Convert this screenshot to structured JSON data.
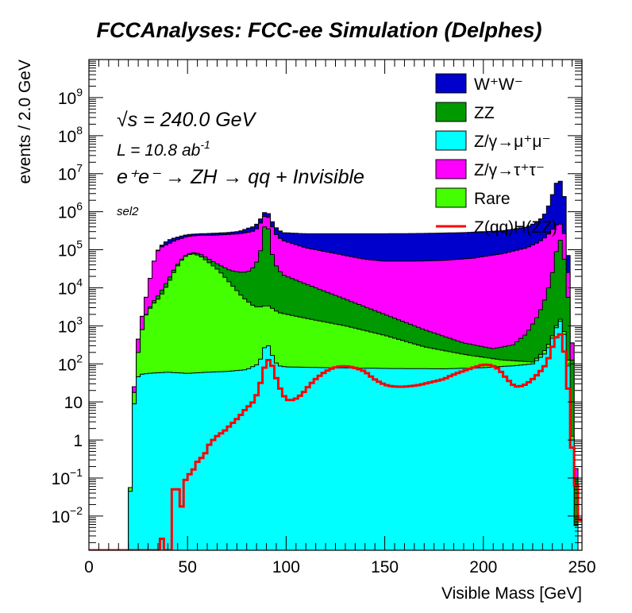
{
  "chart_data": {
    "type": "area",
    "stacked": true,
    "title": "FCCAnalyses: FCC-ee Simulation (Delphes)",
    "xlabel": "Visible Mass [GeV]",
    "ylabel": "events / 2.0 GeV",
    "xlim": [
      0,
      250
    ],
    "ylim_log10": [
      -2.9,
      10
    ],
    "log_y": true,
    "bin_width": 2,
    "x_ticks": [
      {
        "v": 0,
        "t": "0"
      },
      {
        "v": 50,
        "t": "50"
      },
      {
        "v": 100,
        "t": "100"
      },
      {
        "v": 150,
        "t": "150"
      },
      {
        "v": 200,
        "t": "200"
      },
      {
        "v": 250,
        "t": "250"
      }
    ],
    "y_ticks": [
      {
        "e": -2,
        "base": "10",
        "exp": "−2"
      },
      {
        "e": -1,
        "base": "10",
        "exp": "−1"
      },
      {
        "e": 0,
        "base": "1",
        "exp": ""
      },
      {
        "e": 1,
        "base": "10",
        "exp": ""
      },
      {
        "e": 2,
        "base": "10",
        "exp": "2"
      },
      {
        "e": 3,
        "base": "10",
        "exp": "3"
      },
      {
        "e": 4,
        "base": "10",
        "exp": "4"
      },
      {
        "e": 5,
        "base": "10",
        "exp": "5"
      },
      {
        "e": 6,
        "base": "10",
        "exp": "6"
      },
      {
        "e": 7,
        "base": "10",
        "exp": "7"
      },
      {
        "e": 8,
        "base": "10",
        "exp": "8"
      },
      {
        "e": 9,
        "base": "10",
        "exp": "9"
      }
    ],
    "annotations": {
      "sqrt_s": "√s = 240.0 GeV",
      "lumi_base": "L = 10.8 ab",
      "lumi_exp": "-1",
      "process": "e⁺e⁻ → ZH → qq + Invisible",
      "selection": "sel2"
    },
    "legend_position": "top-right",
    "series": [
      {
        "key": "mumu",
        "name": "Z/γ→μ⁺μ⁻",
        "color": "#00ffff",
        "points": [
          [
            20,
            -3
          ],
          [
            22,
            0.3
          ],
          [
            24,
            1.6
          ],
          [
            26,
            1.72
          ],
          [
            30,
            1.75
          ],
          [
            40,
            1.78
          ],
          [
            50,
            1.75
          ],
          [
            60,
            1.78
          ],
          [
            70,
            1.8
          ],
          [
            80,
            1.85
          ],
          [
            86,
            2.0
          ],
          [
            88,
            2.25
          ],
          [
            90,
            2.6
          ],
          [
            92,
            2.35
          ],
          [
            94,
            2.1
          ],
          [
            96,
            1.95
          ],
          [
            100,
            1.92
          ],
          [
            120,
            1.9
          ],
          [
            150,
            1.88
          ],
          [
            180,
            1.87
          ],
          [
            200,
            1.9
          ],
          [
            215,
            1.95
          ],
          [
            225,
            2.0
          ],
          [
            232,
            2.3
          ],
          [
            236,
            2.8
          ],
          [
            238,
            3.1
          ],
          [
            240,
            3.15
          ],
          [
            242,
            2.4
          ],
          [
            244,
            1.5
          ],
          [
            246,
            -1.5
          ],
          [
            248,
            -3
          ]
        ]
      },
      {
        "key": "rare",
        "name": "Rare",
        "color": "#44ff00",
        "points": [
          [
            20,
            -3
          ],
          [
            22,
            0.5
          ],
          [
            24,
            2.0
          ],
          [
            26,
            2.6
          ],
          [
            28,
            3.2
          ],
          [
            32,
            3.55
          ],
          [
            36,
            3.75
          ],
          [
            40,
            4.1
          ],
          [
            44,
            4.5
          ],
          [
            48,
            4.8
          ],
          [
            52,
            4.9
          ],
          [
            56,
            4.85
          ],
          [
            60,
            4.7
          ],
          [
            66,
            4.45
          ],
          [
            72,
            4.1
          ],
          [
            78,
            3.75
          ],
          [
            84,
            3.5
          ],
          [
            88,
            3.5
          ],
          [
            90,
            3.55
          ],
          [
            92,
            3.5
          ],
          [
            96,
            3.35
          ],
          [
            110,
            3.2
          ],
          [
            130,
            3.0
          ],
          [
            150,
            2.75
          ],
          [
            170,
            2.45
          ],
          [
            190,
            2.25
          ],
          [
            210,
            2.1
          ],
          [
            225,
            2.05
          ],
          [
            232,
            2.4
          ],
          [
            236,
            2.85
          ],
          [
            238,
            3.15
          ],
          [
            240,
            3.2
          ],
          [
            242,
            2.5
          ],
          [
            244,
            1.7
          ],
          [
            246,
            -1.5
          ],
          [
            248,
            -3
          ]
        ]
      },
      {
        "key": "zz",
        "name": "ZZ",
        "color": "#009900",
        "points": [
          [
            20,
            -3
          ],
          [
            22,
            0.5
          ],
          [
            24,
            2.0
          ],
          [
            26,
            2.6
          ],
          [
            28,
            3.2
          ],
          [
            32,
            3.6
          ],
          [
            36,
            3.85
          ],
          [
            40,
            4.2
          ],
          [
            44,
            4.55
          ],
          [
            48,
            4.82
          ],
          [
            52,
            4.93
          ],
          [
            56,
            4.9
          ],
          [
            60,
            4.78
          ],
          [
            66,
            4.6
          ],
          [
            72,
            4.45
          ],
          [
            78,
            4.4
          ],
          [
            82,
            4.45
          ],
          [
            86,
            4.75
          ],
          [
            88,
            5.2
          ],
          [
            89,
            5.6
          ],
          [
            90,
            5.75
          ],
          [
            91,
            5.55
          ],
          [
            92,
            5.1
          ],
          [
            94,
            4.65
          ],
          [
            98,
            4.35
          ],
          [
            110,
            4.1
          ],
          [
            130,
            3.7
          ],
          [
            150,
            3.3
          ],
          [
            170,
            2.9
          ],
          [
            190,
            2.55
          ],
          [
            205,
            2.4
          ],
          [
            215,
            2.5
          ],
          [
            222,
            2.8
          ],
          [
            228,
            3.3
          ],
          [
            232,
            3.8
          ],
          [
            236,
            4.6
          ],
          [
            238,
            5.3
          ],
          [
            240,
            5.2
          ],
          [
            242,
            4.3
          ],
          [
            244,
            3.2
          ],
          [
            246,
            1.0
          ],
          [
            248,
            -3
          ]
        ]
      },
      {
        "key": "tautau",
        "name": "Z/γ→τ⁺τ⁻",
        "color": "#ff00ff",
        "points": [
          [
            20,
            -3
          ],
          [
            22,
            0.5
          ],
          [
            24,
            2.3
          ],
          [
            26,
            3.0
          ],
          [
            28,
            3.5
          ],
          [
            30,
            4.0
          ],
          [
            32,
            4.5
          ],
          [
            34,
            4.9
          ],
          [
            36,
            5.05
          ],
          [
            40,
            5.15
          ],
          [
            44,
            5.25
          ],
          [
            50,
            5.35
          ],
          [
            56,
            5.38
          ],
          [
            62,
            5.38
          ],
          [
            70,
            5.4
          ],
          [
            76,
            5.42
          ],
          [
            80,
            5.45
          ],
          [
            84,
            5.5
          ],
          [
            86,
            5.6
          ],
          [
            88,
            5.8
          ],
          [
            90,
            5.95
          ],
          [
            92,
            5.75
          ],
          [
            94,
            5.45
          ],
          [
            98,
            5.25
          ],
          [
            110,
            5.05
          ],
          [
            125,
            4.9
          ],
          [
            140,
            4.75
          ],
          [
            150,
            4.7
          ],
          [
            165,
            4.7
          ],
          [
            180,
            4.72
          ],
          [
            195,
            4.78
          ],
          [
            210,
            4.9
          ],
          [
            222,
            5.05
          ],
          [
            228,
            5.2
          ],
          [
            232,
            5.35
          ],
          [
            236,
            5.6
          ],
          [
            238,
            5.7
          ],
          [
            240,
            5.65
          ],
          [
            242,
            5.2
          ],
          [
            244,
            3.6
          ],
          [
            246,
            1.5
          ],
          [
            248,
            -3
          ]
        ]
      },
      {
        "key": "ww",
        "name": "W⁺W⁻",
        "color": "#0000cc",
        "points": [
          [
            20,
            -3
          ],
          [
            22,
            0.5
          ],
          [
            24,
            2.3
          ],
          [
            26,
            3.0
          ],
          [
            28,
            3.5
          ],
          [
            30,
            4.0
          ],
          [
            32,
            4.5
          ],
          [
            34,
            4.9
          ],
          [
            36,
            5.08
          ],
          [
            40,
            5.25
          ],
          [
            44,
            5.32
          ],
          [
            50,
            5.4
          ],
          [
            56,
            5.42
          ],
          [
            62,
            5.43
          ],
          [
            70,
            5.45
          ],
          [
            76,
            5.48
          ],
          [
            80,
            5.55
          ],
          [
            84,
            5.62
          ],
          [
            86,
            5.72
          ],
          [
            88,
            5.9
          ],
          [
            90,
            6.05
          ],
          [
            92,
            5.85
          ],
          [
            94,
            5.62
          ],
          [
            98,
            5.45
          ],
          [
            110,
            5.42
          ],
          [
            130,
            5.42
          ],
          [
            150,
            5.42
          ],
          [
            170,
            5.43
          ],
          [
            190,
            5.45
          ],
          [
            210,
            5.5
          ],
          [
            222,
            5.6
          ],
          [
            228,
            5.75
          ],
          [
            232,
            6.0
          ],
          [
            234,
            6.3
          ],
          [
            236,
            6.6
          ],
          [
            238,
            6.9
          ],
          [
            240,
            6.7
          ],
          [
            242,
            6.1
          ],
          [
            244,
            3.6
          ],
          [
            246,
            1.5
          ],
          [
            248,
            -3
          ]
        ]
      }
    ],
    "signal": {
      "key": "sig",
      "name": "Z(qq)H(ZZ)",
      "color": "#ff0000",
      "points": [
        [
          0,
          -3
        ],
        [
          36,
          -3
        ],
        [
          36,
          -2.2
        ],
        [
          38,
          -3
        ],
        [
          40,
          -3
        ],
        [
          42,
          -3
        ],
        [
          42,
          -1.3
        ],
        [
          46,
          -1.3
        ],
        [
          46,
          -1.75
        ],
        [
          48,
          -1.75
        ],
        [
          48,
          -1.05
        ],
        [
          50,
          -1.05
        ],
        [
          50,
          -0.95
        ],
        [
          52,
          -0.85
        ],
        [
          54,
          -0.7
        ],
        [
          56,
          -0.45
        ],
        [
          58,
          -0.5
        ],
        [
          60,
          -0.2
        ],
        [
          62,
          -0.05
        ],
        [
          64,
          0.05
        ],
        [
          66,
          0.15
        ],
        [
          68,
          0.2
        ],
        [
          70,
          0.3
        ],
        [
          72,
          0.4
        ],
        [
          74,
          0.5
        ],
        [
          76,
          0.6
        ],
        [
          78,
          0.72
        ],
        [
          80,
          0.85
        ],
        [
          82,
          0.92
        ],
        [
          84,
          1.05
        ],
        [
          86,
          1.3
        ],
        [
          88,
          1.7
        ],
        [
          90,
          2.1
        ],
        [
          92,
          2.1
        ],
        [
          94,
          1.8
        ],
        [
          96,
          1.45
        ],
        [
          98,
          1.25
        ],
        [
          100,
          1.05
        ],
        [
          104,
          1.05
        ],
        [
          108,
          1.2
        ],
        [
          112,
          1.45
        ],
        [
          116,
          1.65
        ],
        [
          120,
          1.8
        ],
        [
          124,
          1.9
        ],
        [
          128,
          1.94
        ],
        [
          132,
          1.93
        ],
        [
          136,
          1.88
        ],
        [
          140,
          1.8
        ],
        [
          144,
          1.62
        ],
        [
          148,
          1.5
        ],
        [
          152,
          1.42
        ],
        [
          156,
          1.4
        ],
        [
          160,
          1.4
        ],
        [
          164,
          1.42
        ],
        [
          168,
          1.45
        ],
        [
          172,
          1.5
        ],
        [
          176,
          1.55
        ],
        [
          180,
          1.6
        ],
        [
          184,
          1.7
        ],
        [
          188,
          1.78
        ],
        [
          192,
          1.85
        ],
        [
          196,
          1.92
        ],
        [
          200,
          1.98
        ],
        [
          204,
          1.97
        ],
        [
          208,
          1.85
        ],
        [
          212,
          1.6
        ],
        [
          216,
          1.4
        ],
        [
          220,
          1.42
        ],
        [
          224,
          1.55
        ],
        [
          228,
          1.75
        ],
        [
          232,
          2.0
        ],
        [
          234,
          2.3
        ],
        [
          236,
          2.6
        ],
        [
          238,
          2.8
        ],
        [
          240,
          2.75
        ],
        [
          242,
          1.9
        ],
        [
          244,
          0.8
        ],
        [
          246,
          -1.2
        ],
        [
          248,
          -1.2
        ],
        [
          250,
          -3
        ]
      ]
    }
  }
}
